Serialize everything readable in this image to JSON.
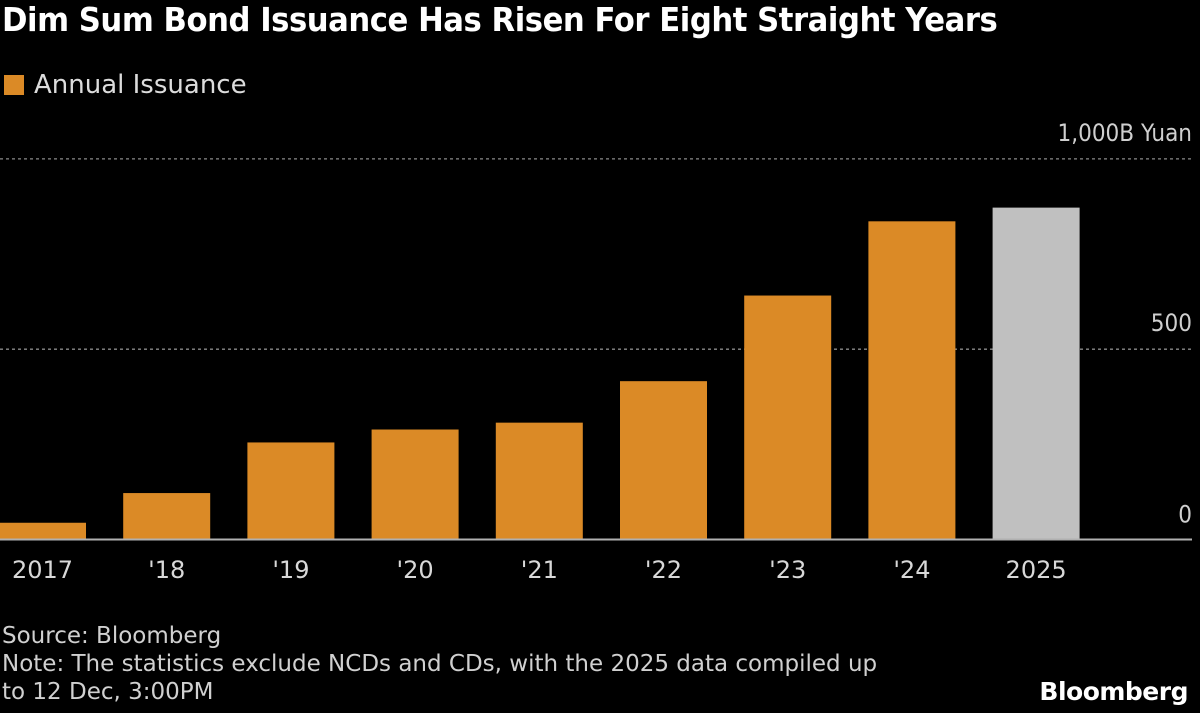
{
  "title": "Dim Sum Bond Issuance Has Risen For Eight Straight Years",
  "legend": {
    "label": "Annual Issuance",
    "color": "#db8a26"
  },
  "chart_data": {
    "type": "bar",
    "categories": [
      "2017",
      "'18",
      "'19",
      "'20",
      "'21",
      "'22",
      "'23",
      "'24",
      "2025"
    ],
    "values": [
      44,
      122,
      255,
      289,
      307,
      416,
      641,
      836,
      872
    ],
    "series": [
      {
        "name": "Annual Issuance",
        "values": [
          44,
          122,
          255,
          289,
          307,
          416,
          641,
          836,
          872
        ]
      }
    ],
    "bar_colors": [
      "#db8a26",
      "#db8a26",
      "#db8a26",
      "#db8a26",
      "#db8a26",
      "#db8a26",
      "#db8a26",
      "#db8a26",
      "#c0c0c0"
    ],
    "ylim": [
      0,
      1000
    ],
    "yticks": [
      0,
      500,
      1000
    ],
    "ytick_labels": [
      "0",
      "500",
      "1,000B Yuan"
    ],
    "yaxis_side": "right",
    "grid": true,
    "legend_placement": "top-left"
  },
  "source": "Source: Bloomberg",
  "note_line1": "Note: The statistics exclude NCDs and CDs, with the 2025 data compiled up",
  "note_line2": "to 12 Dec, 3:00PM",
  "logo": "Bloomberg"
}
